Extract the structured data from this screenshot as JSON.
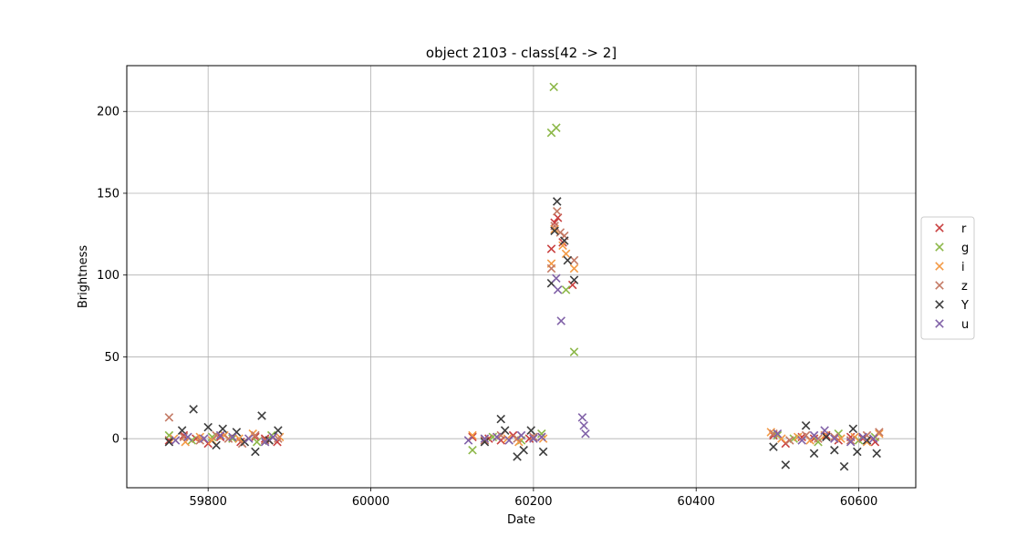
{
  "chart_data": {
    "type": "scatter",
    "title": "object 2103 - class[42 -> 2]",
    "xlabel": "Date",
    "ylabel": "Brightness",
    "xlim": [
      59700,
      60670
    ],
    "ylim": [
      -30,
      228
    ],
    "xticks": [
      59800,
      60000,
      60200,
      60400,
      60600
    ],
    "yticks": [
      0,
      50,
      100,
      150,
      200
    ],
    "grid": true,
    "legend_position": "right",
    "marker": "x",
    "series": [
      {
        "name": "r",
        "color": "#c94040",
        "points": [
          [
            59752,
            -1
          ],
          [
            59770,
            2
          ],
          [
            59785,
            0
          ],
          [
            59800,
            -3
          ],
          [
            59815,
            1
          ],
          [
            59840,
            -2
          ],
          [
            59858,
            1
          ],
          [
            59870,
            0
          ],
          [
            59885,
            -2
          ],
          [
            60125,
            1
          ],
          [
            60145,
            0
          ],
          [
            60160,
            -1
          ],
          [
            60175,
            2
          ],
          [
            60195,
            0
          ],
          [
            60210,
            1
          ],
          [
            60222,
            116
          ],
          [
            60226,
            132
          ],
          [
            60230,
            135
          ],
          [
            60236,
            120
          ],
          [
            60248,
            94
          ],
          [
            60495,
            2
          ],
          [
            60510,
            -3
          ],
          [
            60530,
            1
          ],
          [
            60545,
            0
          ],
          [
            60560,
            2
          ],
          [
            60575,
            -1
          ],
          [
            60590,
            1
          ],
          [
            60605,
            0
          ],
          [
            60620,
            -2
          ]
        ]
      },
      {
        "name": "g",
        "color": "#8db84a",
        "points": [
          [
            59752,
            2
          ],
          [
            59780,
            -1
          ],
          [
            59805,
            1
          ],
          [
            59830,
            0
          ],
          [
            59860,
            -2
          ],
          [
            59878,
            2
          ],
          [
            60125,
            -7
          ],
          [
            60150,
            1
          ],
          [
            60185,
            -1
          ],
          [
            60210,
            3
          ],
          [
            60222,
            187
          ],
          [
            60225,
            215
          ],
          [
            60228,
            190
          ],
          [
            60240,
            91
          ],
          [
            60250,
            53
          ],
          [
            60500,
            2
          ],
          [
            60520,
            0
          ],
          [
            60550,
            -2
          ],
          [
            60575,
            3
          ],
          [
            60600,
            -1
          ],
          [
            60620,
            1
          ]
        ]
      },
      {
        "name": "i",
        "color": "#f39a45",
        "points": [
          [
            59758,
            0
          ],
          [
            59772,
            -2
          ],
          [
            59790,
            1
          ],
          [
            59805,
            -1
          ],
          [
            59820,
            2
          ],
          [
            59838,
            0
          ],
          [
            59855,
            3
          ],
          [
            59875,
            -1
          ],
          [
            59888,
            1
          ],
          [
            60125,
            2
          ],
          [
            60140,
            -1
          ],
          [
            60155,
            1
          ],
          [
            60168,
            0
          ],
          [
            60182,
            -2
          ],
          [
            60200,
            1
          ],
          [
            60212,
            0
          ],
          [
            60222,
            107
          ],
          [
            60226,
            128
          ],
          [
            60236,
            118
          ],
          [
            60240,
            113
          ],
          [
            60250,
            104
          ],
          [
            60492,
            4
          ],
          [
            60505,
            0
          ],
          [
            60525,
            1
          ],
          [
            60540,
            -1
          ],
          [
            60558,
            2
          ],
          [
            60578,
            0
          ],
          [
            60595,
            1
          ],
          [
            60610,
            -2
          ],
          [
            60625,
            3
          ]
        ]
      },
      {
        "name": "z",
        "color": "#c47a65",
        "points": [
          [
            59752,
            13
          ],
          [
            59770,
            1
          ],
          [
            59790,
            -1
          ],
          [
            59810,
            2
          ],
          [
            59825,
            0
          ],
          [
            59842,
            -3
          ],
          [
            59858,
            2
          ],
          [
            59870,
            -1
          ],
          [
            59886,
            0
          ],
          [
            60140,
            -1
          ],
          [
            60160,
            2
          ],
          [
            60180,
            0
          ],
          [
            60200,
            1
          ],
          [
            60222,
            104
          ],
          [
            60226,
            130
          ],
          [
            60229,
            139
          ],
          [
            60233,
            126
          ],
          [
            60238,
            124
          ],
          [
            60250,
            109
          ],
          [
            60495,
            3
          ],
          [
            60515,
            -1
          ],
          [
            60535,
            2
          ],
          [
            60550,
            0
          ],
          [
            60570,
            1
          ],
          [
            60590,
            -1
          ],
          [
            60610,
            2
          ],
          [
            60625,
            4
          ]
        ]
      },
      {
        "name": "Y",
        "color": "#3d3d3d",
        "points": [
          [
            59752,
            -2
          ],
          [
            59768,
            5
          ],
          [
            59782,
            18
          ],
          [
            59800,
            7
          ],
          [
            59810,
            -4
          ],
          [
            59818,
            6
          ],
          [
            59835,
            4
          ],
          [
            59845,
            -2
          ],
          [
            59858,
            -8
          ],
          [
            59866,
            14
          ],
          [
            59875,
            -1
          ],
          [
            59886,
            5
          ],
          [
            60140,
            -2
          ],
          [
            60160,
            12
          ],
          [
            60165,
            5
          ],
          [
            60180,
            -11
          ],
          [
            60188,
            -7
          ],
          [
            60197,
            5
          ],
          [
            60212,
            -8
          ],
          [
            60222,
            95
          ],
          [
            60226,
            127
          ],
          [
            60229,
            145
          ],
          [
            60238,
            121
          ],
          [
            60242,
            109
          ],
          [
            60250,
            97
          ],
          [
            60495,
            -5
          ],
          [
            60510,
            -16
          ],
          [
            60535,
            8
          ],
          [
            60545,
            -9
          ],
          [
            60560,
            1
          ],
          [
            60570,
            -7
          ],
          [
            60582,
            -17
          ],
          [
            60593,
            6
          ],
          [
            60598,
            -8
          ],
          [
            60610,
            -1
          ],
          [
            60622,
            -9
          ]
        ]
      },
      {
        "name": "u",
        "color": "#8162a8",
        "points": [
          [
            59760,
            -1
          ],
          [
            59775,
            1
          ],
          [
            59795,
            0
          ],
          [
            59815,
            2
          ],
          [
            59830,
            1
          ],
          [
            59850,
            0
          ],
          [
            59870,
            -2
          ],
          [
            59880,
            1
          ],
          [
            60120,
            -1
          ],
          [
            60140,
            0
          ],
          [
            60155,
            1
          ],
          [
            60170,
            -1
          ],
          [
            60185,
            2
          ],
          [
            60200,
            0
          ],
          [
            60210,
            1
          ],
          [
            60228,
            98
          ],
          [
            60230,
            91
          ],
          [
            60234,
            72
          ],
          [
            60260,
            13
          ],
          [
            60262,
            8
          ],
          [
            60264,
            3
          ],
          [
            60500,
            3
          ],
          [
            60530,
            -1
          ],
          [
            60545,
            2
          ],
          [
            60558,
            5
          ],
          [
            60570,
            0
          ],
          [
            60590,
            -2
          ],
          [
            60605,
            1
          ],
          [
            60618,
            0
          ]
        ]
      }
    ]
  }
}
